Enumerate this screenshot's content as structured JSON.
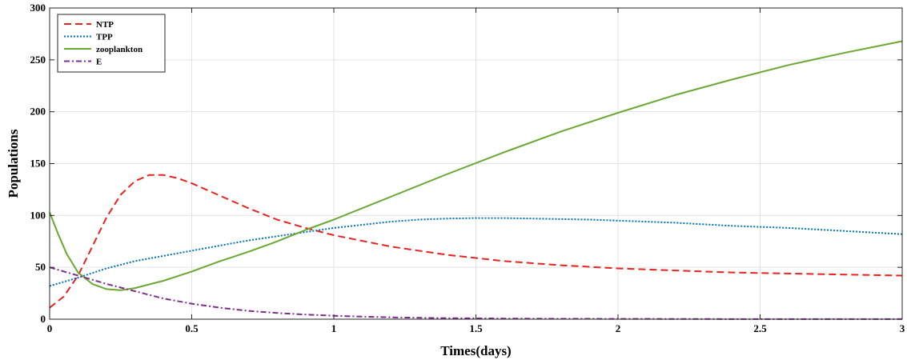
{
  "chart_data": {
    "type": "line",
    "xlabel": "Times(days)",
    "ylabel": "Populations",
    "xlim": [
      0,
      3
    ],
    "ylim": [
      0,
      300
    ],
    "xticks": [
      0,
      0.5,
      1,
      1.5,
      2,
      2.5,
      3
    ],
    "xtick_labels": [
      "0",
      "0.5",
      "1",
      "1.5",
      "2",
      "2.5",
      "3"
    ],
    "yticks": [
      0,
      50,
      100,
      150,
      200,
      250,
      300
    ],
    "ytick_labels": [
      "0",
      "50",
      "100",
      "150",
      "200",
      "250",
      "300"
    ],
    "grid": true,
    "legend_position": "top-left",
    "series": [
      {
        "name": "NTP",
        "color": "#e8231f",
        "style": "dashed",
        "x": [
          0,
          0.05,
          0.1,
          0.15,
          0.2,
          0.25,
          0.3,
          0.35,
          0.4,
          0.45,
          0.5,
          0.6,
          0.7,
          0.8,
          0.9,
          1.0,
          1.2,
          1.4,
          1.6,
          1.8,
          2.0,
          2.2,
          2.4,
          2.6,
          2.8,
          3.0
        ],
        "y": [
          11,
          22,
          42,
          70,
          98,
          120,
          133,
          139,
          139,
          136,
          131,
          119,
          107,
          96,
          88,
          81,
          70,
          62,
          56,
          52,
          49,
          47,
          45,
          44,
          43,
          42
        ]
      },
      {
        "name": "TPP",
        "color": "#0072bd",
        "style": "dotted",
        "x": [
          0,
          0.1,
          0.2,
          0.3,
          0.4,
          0.5,
          0.6,
          0.7,
          0.8,
          0.9,
          1.0,
          1.1,
          1.2,
          1.3,
          1.4,
          1.5,
          1.6,
          1.7,
          1.8,
          1.9,
          2.0,
          2.2,
          2.4,
          2.6,
          2.8,
          3.0
        ],
        "y": [
          32,
          40,
          49,
          56,
          61,
          66,
          71,
          76,
          80,
          84,
          88,
          91,
          94,
          96,
          97,
          97.5,
          97.5,
          97,
          96.5,
          96,
          95,
          93,
          90,
          88,
          85,
          82
        ]
      },
      {
        "name": "zooplankton",
        "color": "#6aa832",
        "style": "solid",
        "x": [
          0,
          0.03,
          0.06,
          0.1,
          0.15,
          0.2,
          0.25,
          0.3,
          0.4,
          0.5,
          0.6,
          0.7,
          0.8,
          0.9,
          1.0,
          1.2,
          1.4,
          1.6,
          1.8,
          2.0,
          2.2,
          2.4,
          2.6,
          2.8,
          3.0
        ],
        "y": [
          103,
          82,
          63,
          45,
          34,
          29,
          28,
          30,
          37,
          46,
          56,
          65,
          75,
          86,
          96,
          118,
          140,
          161,
          181,
          199,
          216,
          231,
          245,
          257,
          268
        ]
      },
      {
        "name": "E",
        "color": "#7e2f8e",
        "style": "dashdot",
        "x": [
          0,
          0.1,
          0.2,
          0.3,
          0.4,
          0.5,
          0.6,
          0.7,
          0.8,
          0.9,
          1.0,
          1.1,
          1.2,
          1.4,
          1.6,
          1.8,
          2.0,
          2.5,
          3.0
        ],
        "y": [
          50,
          42,
          34,
          27,
          20,
          15,
          11,
          8,
          6,
          4.5,
          3.3,
          2.5,
          1.8,
          1.0,
          0.6,
          0.4,
          0.3,
          0.1,
          0.05
        ]
      }
    ]
  }
}
